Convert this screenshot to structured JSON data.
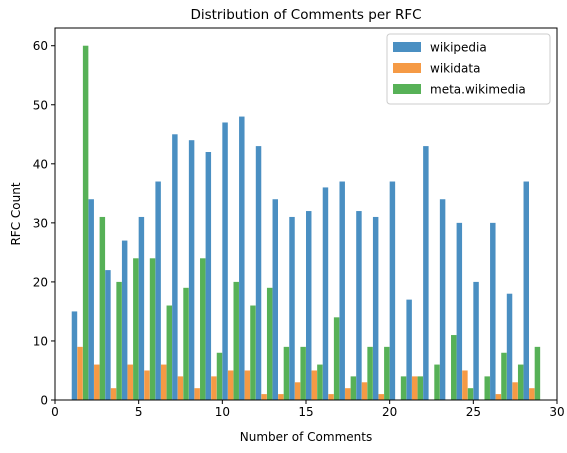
{
  "chart_data": {
    "type": "bar",
    "title": "Distribution of Comments per RFC",
    "xlabel": "Number of Comments",
    "ylabel": "RFC Count",
    "xlim": [
      0,
      30
    ],
    "ylim": [
      0,
      63
    ],
    "xticks": [
      0,
      5,
      10,
      15,
      20,
      25,
      30
    ],
    "yticks": [
      0,
      10,
      20,
      30,
      40,
      50,
      60
    ],
    "legend_position": "top-right",
    "grid": false,
    "x": [
      1,
      2,
      3,
      4,
      5,
      6,
      7,
      8,
      9,
      10,
      11,
      12,
      13,
      14,
      15,
      16,
      17,
      18,
      19,
      20,
      21,
      22,
      23,
      24,
      25,
      26,
      27,
      28
    ],
    "series": [
      {
        "name": "wikipedia",
        "color": "#4a8fc2",
        "values": [
          15,
          34,
          22,
          27,
          31,
          37,
          45,
          44,
          42,
          47,
          48,
          43,
          34,
          31,
          32,
          36,
          37,
          32,
          31,
          37,
          17,
          43,
          34,
          30,
          20,
          30,
          18,
          37
        ]
      },
      {
        "name": "wikidata",
        "color": "#f59a45",
        "values": [
          9,
          6,
          2,
          6,
          5,
          6,
          4,
          2,
          4,
          5,
          5,
          1,
          1,
          3,
          5,
          1,
          2,
          3,
          1,
          0,
          4,
          0,
          0,
          5,
          0,
          1,
          3,
          2
        ]
      },
      {
        "name": "meta.wikimedia",
        "color": "#57b157",
        "values": [
          60,
          31,
          20,
          24,
          24,
          16,
          19,
          24,
          8,
          20,
          16,
          19,
          9,
          9,
          6,
          14,
          4,
          9,
          9,
          4,
          4,
          6,
          11,
          2,
          4,
          8,
          6,
          9
        ]
      }
    ]
  }
}
